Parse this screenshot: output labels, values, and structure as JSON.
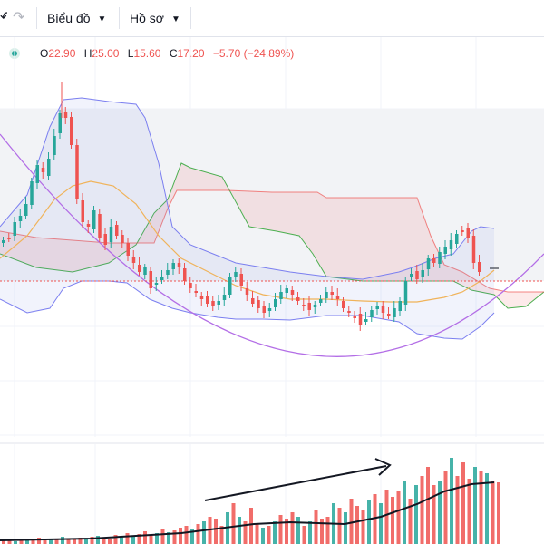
{
  "toolbar": {
    "undo_icon": "undo-arrow-icon",
    "redo_icon": "redo-arrow-icon",
    "chart_menu_label": "Biểu đồ",
    "profile_menu_label": "Hồ sơ"
  },
  "legend": {
    "status_icon": "status-dot-icon",
    "open_key": "O",
    "open_val": "22.90",
    "high_key": "H",
    "high_val": "25.00",
    "low_key": "L",
    "low_val": "15.60",
    "close_key": "C",
    "close_val": "17.20",
    "change": "−5.70 (−24.89%)"
  },
  "colors": {
    "up": "#26a69a",
    "down": "#ef5350",
    "bollinger": "#7b7ff0",
    "ma": "#f0b35a",
    "curve": "#b36ee6",
    "span_a": "#4caf50",
    "span_b": "#ef5350"
  },
  "annotation": {
    "trend_arrow_icon": "trend-arrow-icon"
  },
  "chart_data": {
    "type": "candlestick",
    "last_bar": {
      "open": 22.9,
      "high": 25.0,
      "low": 15.6,
      "close": 17.2,
      "change": -5.7,
      "change_pct": -24.89
    },
    "indicators": [
      "Bollinger Bands",
      "Moving Average",
      "Ichimoku Cloud",
      "Volume",
      "Volume MA"
    ],
    "grid": true,
    "price_line": "dotted-red"
  }
}
